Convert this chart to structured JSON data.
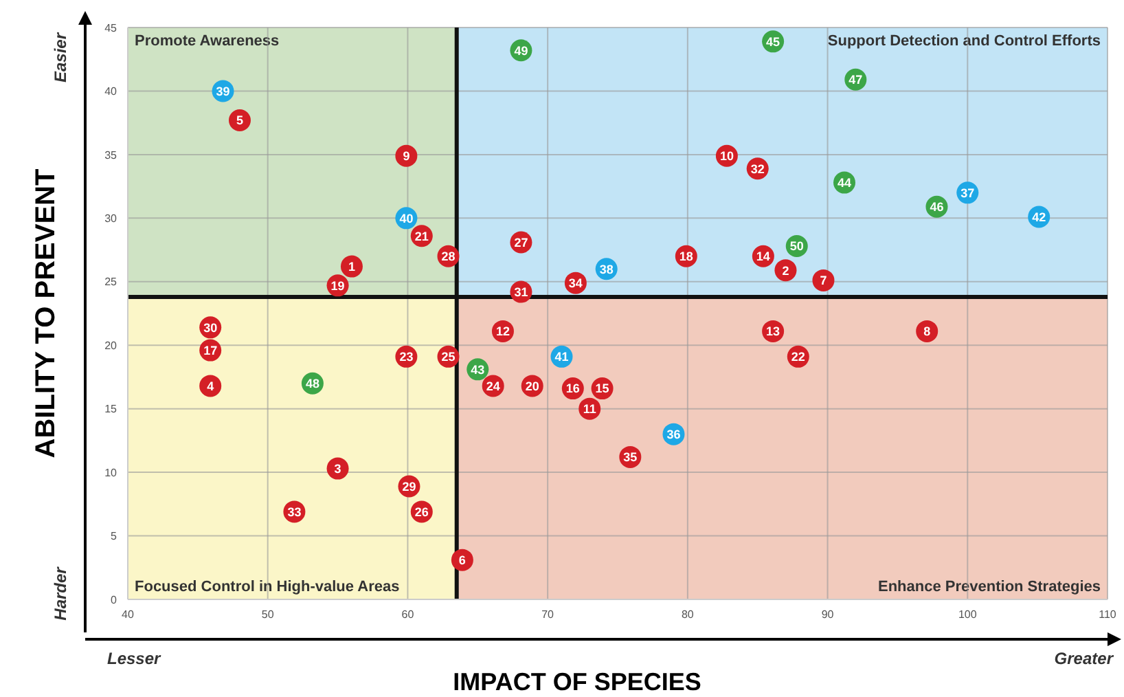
{
  "chart_data": {
    "type": "scatter",
    "xlabel": "IMPACT OF SPECIES",
    "ylabel": "ABILITY TO PREVENT",
    "xlim": [
      40,
      110
    ],
    "xticks": [
      40,
      50,
      60,
      70,
      80,
      90,
      100,
      110
    ],
    "ylim": [
      0,
      45
    ],
    "yticks": [
      0,
      5,
      10,
      15,
      20,
      25,
      30,
      35,
      40,
      45
    ],
    "grid": true,
    "marker": "circle",
    "ref_lines": [
      {
        "axis": "x",
        "value": 63.5,
        "color": "#111111"
      },
      {
        "axis": "y",
        "value": 23.8,
        "color": "#111111"
      }
    ],
    "series": [
      {
        "color": "#d41f26",
        "x": [
          56.0,
          87.0,
          55.0,
          45.9,
          48.0,
          63.9,
          89.7,
          97.1,
          59.9,
          82.8,
          73.0,
          66.8,
          86.1,
          85.4,
          73.9,
          71.8,
          45.9,
          79.9,
          55.0,
          68.9,
          61.0,
          87.9,
          59.9,
          66.1,
          62.9,
          61.0,
          68.1,
          62.9,
          60.1,
          45.9,
          68.1,
          85.0,
          51.9,
          72.0,
          75.9
        ],
        "values": [
          26.2,
          25.9,
          10.3,
          16.8,
          37.7,
          3.1,
          25.1,
          21.1,
          34.9,
          34.9,
          15.0,
          21.1,
          21.1,
          27.0,
          16.6,
          16.6,
          19.6,
          27.0,
          24.7,
          16.8,
          28.6,
          19.1,
          19.1,
          16.8,
          19.1,
          6.9,
          28.1,
          27.0,
          8.9,
          21.4,
          24.2,
          33.9,
          6.9,
          24.9,
          11.2
        ]
      },
      {
        "color": "#1ea8e6",
        "x": [
          79.0,
          100.0,
          74.2,
          46.8,
          59.9,
          71.0,
          105.1
        ],
        "values": [
          13.0,
          32.0,
          26.0,
          40.0,
          30.0,
          19.1,
          30.1
        ]
      },
      {
        "color": "#3ca648",
        "x": [
          65.0,
          91.2,
          86.1,
          97.8,
          92.0,
          53.2,
          68.1,
          87.8
        ],
        "values": [
          18.1,
          32.8,
          43.9,
          30.9,
          40.9,
          17.0,
          43.2,
          27.8
        ]
      }
    ],
    "annotations": [
      "Promote Awareness",
      "Support Detection and Control Efforts",
      "Focused Control in High-value Areas",
      "Enhance Prevention Strategies",
      "Easier",
      "Harder",
      "Lesser",
      "Greater",
      {
        "text": "1",
        "x": 56.0,
        "y": 26.2
      },
      {
        "text": "2",
        "x": 87.0,
        "y": 25.9
      },
      {
        "text": "3",
        "x": 55.0,
        "y": 10.3
      },
      {
        "text": "4",
        "x": 45.9,
        "y": 16.8
      },
      {
        "text": "5",
        "x": 48.0,
        "y": 37.7
      },
      {
        "text": "6",
        "x": 63.9,
        "y": 3.1
      },
      {
        "text": "7",
        "x": 89.7,
        "y": 25.1
      },
      {
        "text": "8",
        "x": 97.1,
        "y": 21.1
      },
      {
        "text": "9",
        "x": 59.9,
        "y": 34.9
      },
      {
        "text": "10",
        "x": 82.8,
        "y": 34.9
      },
      {
        "text": "11",
        "x": 73.0,
        "y": 15.0
      },
      {
        "text": "12",
        "x": 66.8,
        "y": 21.1
      },
      {
        "text": "13",
        "x": 86.1,
        "y": 21.1
      },
      {
        "text": "14",
        "x": 85.4,
        "y": 27.0
      },
      {
        "text": "15",
        "x": 73.9,
        "y": 16.6
      },
      {
        "text": "16",
        "x": 71.8,
        "y": 16.6
      },
      {
        "text": "17",
        "x": 45.9,
        "y": 19.6
      },
      {
        "text": "18",
        "x": 79.9,
        "y": 27.0
      },
      {
        "text": "19",
        "x": 55.0,
        "y": 24.7
      },
      {
        "text": "20",
        "x": 68.9,
        "y": 16.8
      },
      {
        "text": "21",
        "x": 61.0,
        "y": 28.6
      },
      {
        "text": "22",
        "x": 87.9,
        "y": 19.1
      },
      {
        "text": "23",
        "x": 59.9,
        "y": 19.1
      },
      {
        "text": "24",
        "x": 66.1,
        "y": 16.8
      },
      {
        "text": "25",
        "x": 62.9,
        "y": 19.1
      },
      {
        "text": "26",
        "x": 61.0,
        "y": 6.9
      },
      {
        "text": "27",
        "x": 68.1,
        "y": 28.1
      },
      {
        "text": "28",
        "x": 62.9,
        "y": 27.0
      },
      {
        "text": "29",
        "x": 60.1,
        "y": 8.9
      },
      {
        "text": "30",
        "x": 45.9,
        "y": 21.4
      },
      {
        "text": "31",
        "x": 68.1,
        "y": 24.2
      },
      {
        "text": "32",
        "x": 85.0,
        "y": 33.9
      },
      {
        "text": "33",
        "x": 51.9,
        "y": 6.9
      },
      {
        "text": "34",
        "x": 72.0,
        "y": 24.9
      },
      {
        "text": "35",
        "x": 75.9,
        "y": 11.2
      },
      {
        "text": "36",
        "x": 79.0,
        "y": 13.0
      },
      {
        "text": "37",
        "x": 100.0,
        "y": 32.0
      },
      {
        "text": "38",
        "x": 74.2,
        "y": 26.0
      },
      {
        "text": "39",
        "x": 46.8,
        "y": 40.0
      },
      {
        "text": "40",
        "x": 59.9,
        "y": 30.0
      },
      {
        "text": "41",
        "x": 71.0,
        "y": 19.1
      },
      {
        "text": "42",
        "x": 105.1,
        "y": 30.1
      },
      {
        "text": "43",
        "x": 65.0,
        "y": 18.1
      },
      {
        "text": "44",
        "x": 91.2,
        "y": 32.8
      },
      {
        "text": "45",
        "x": 86.1,
        "y": 43.9
      },
      {
        "text": "46",
        "x": 97.8,
        "y": 30.9
      },
      {
        "text": "47",
        "x": 92.0,
        "y": 40.9
      },
      {
        "text": "48",
        "x": 53.2,
        "y": 17.0
      },
      {
        "text": "49",
        "x": 68.1,
        "y": 43.2
      },
      {
        "text": "50",
        "x": 87.8,
        "y": 27.8
      }
    ]
  }
}
